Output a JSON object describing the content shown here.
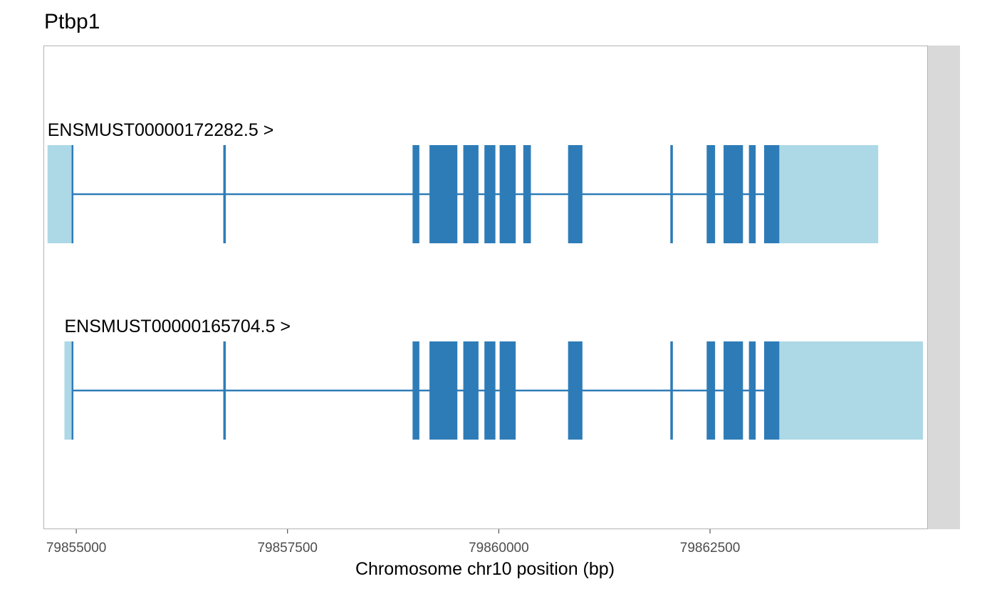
{
  "chart_data": {
    "type": "gene-track",
    "title": "Ptbp1",
    "xlabel": "Chromosome chr10 position (bp)",
    "xlim": [
      79854620,
      79865070
    ],
    "xticks": [
      79855000,
      79857500,
      79860000,
      79862500
    ],
    "xtick_labels": [
      "79855000",
      "79857500",
      "79860000",
      "79862500"
    ],
    "strand": "+",
    "colors": {
      "cds": "#2e7cb7",
      "utr": "#add8e6",
      "intron": "#2e7cb7",
      "panel_border": "#b3b3b3",
      "strip": "#d9d9d9"
    },
    "transcripts": [
      {
        "label": "ENSMUST00000172282.5 >",
        "utr": [
          [
            79854660,
            79854955
          ],
          [
            79863320,
            79864490
          ]
        ],
        "cds": [
          [
            79854945,
            79854965
          ],
          [
            79856740,
            79856770
          ],
          [
            79858980,
            79859060
          ],
          [
            79859180,
            79859510
          ],
          [
            79859580,
            79859760
          ],
          [
            79859830,
            79859960
          ],
          [
            79860010,
            79860200
          ],
          [
            79860290,
            79860380
          ],
          [
            79860820,
            79860990
          ],
          [
            79862030,
            79862060
          ],
          [
            79862460,
            79862560
          ],
          [
            79862660,
            79862890
          ],
          [
            79862960,
            79863040
          ],
          [
            79863140,
            79863320
          ]
        ],
        "intron": [
          79854960,
          79863140
        ]
      },
      {
        "label": "ENSMUST00000165704.5 >",
        "utr": [
          [
            79854860,
            79854955
          ],
          [
            79863320,
            79865020
          ]
        ],
        "cds": [
          [
            79854945,
            79854965
          ],
          [
            79856740,
            79856770
          ],
          [
            79858980,
            79859060
          ],
          [
            79859180,
            79859510
          ],
          [
            79859580,
            79859760
          ],
          [
            79859830,
            79859960
          ],
          [
            79860010,
            79860200
          ],
          [
            79860820,
            79860990
          ],
          [
            79862030,
            79862060
          ],
          [
            79862460,
            79862560
          ],
          [
            79862660,
            79862890
          ],
          [
            79862960,
            79863040
          ],
          [
            79863140,
            79863320
          ]
        ],
        "intron": [
          79854960,
          79863140
        ]
      }
    ]
  }
}
